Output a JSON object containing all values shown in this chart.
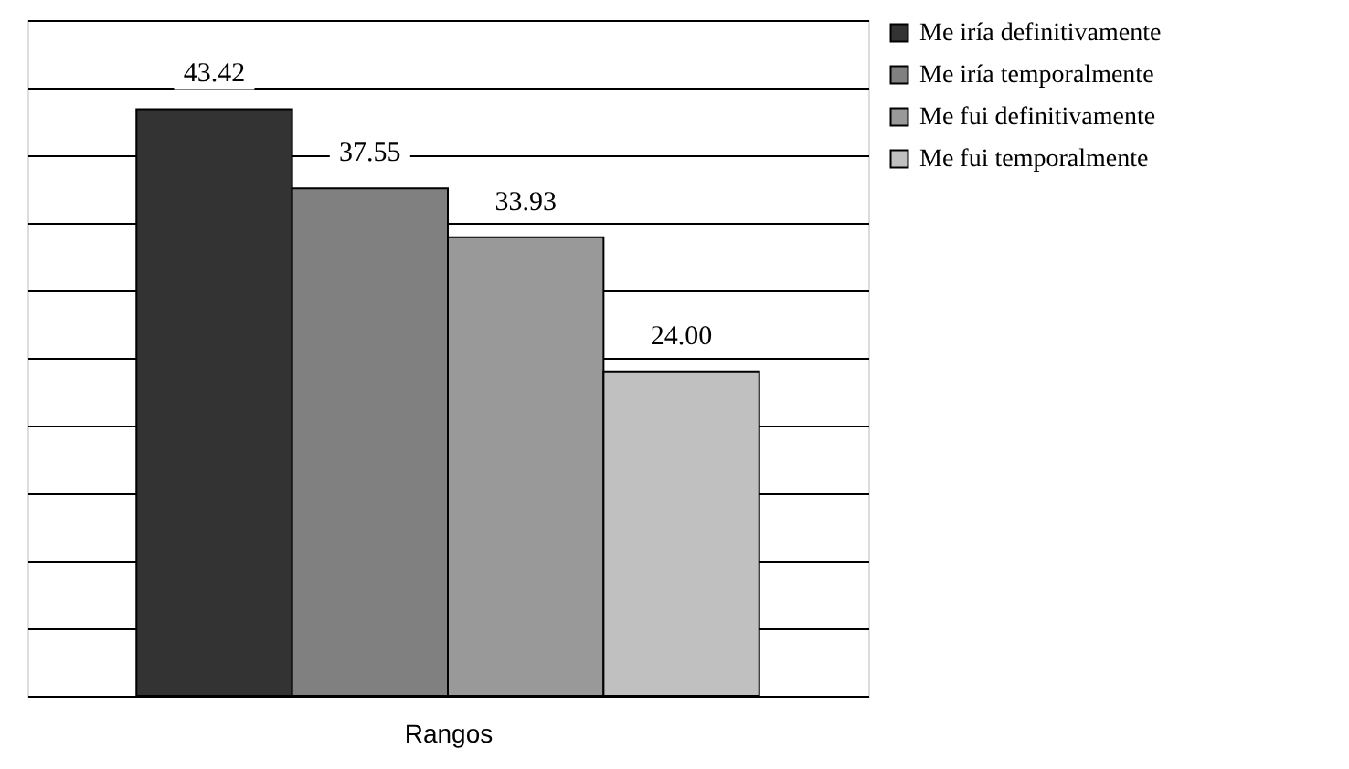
{
  "chart_data": {
    "type": "bar",
    "categories": [
      null
    ],
    "xlabel": "Rangos",
    "series": [
      {
        "name": "Me iría definitivamente",
        "color": "#333333",
        "values": [
          43.42
        ],
        "value_labels": [
          "43.42"
        ]
      },
      {
        "name": "Me iría temporalmente",
        "color": "#808080",
        "values": [
          37.55
        ],
        "value_labels": [
          "37.55"
        ]
      },
      {
        "name": "Me fui definitivamente",
        "color": "#999999",
        "values": [
          33.93
        ],
        "value_labels": [
          "33.93"
        ]
      },
      {
        "name": "Me fui temporalmente",
        "color": "#c0c0c0",
        "values": [
          24.0
        ],
        "value_labels": [
          "24.00"
        ]
      }
    ],
    "ylim": [
      0,
      50
    ],
    "grid": "y",
    "legend": "right",
    "tick_labels": false
  }
}
